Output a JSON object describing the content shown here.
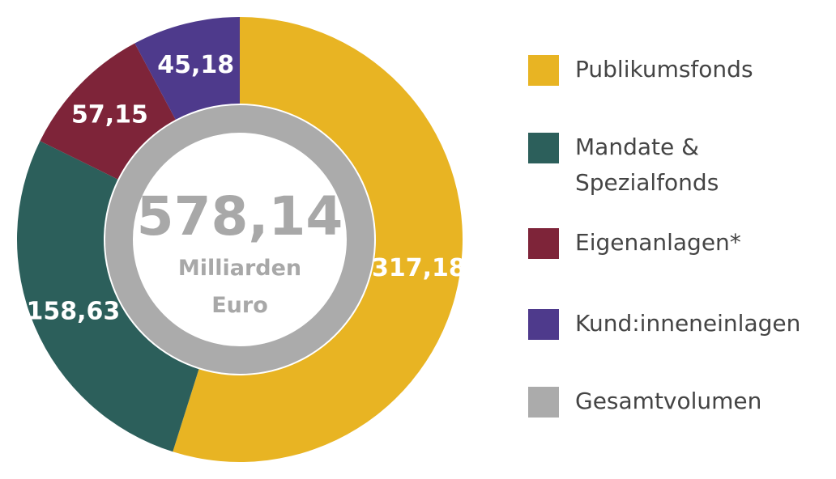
{
  "chart_data": {
    "type": "pie",
    "variant": "donut",
    "title": "",
    "categories": [
      "Publikumsfonds",
      "Mandate & Spezialfonds",
      "Eigenanlagen*",
      "Kund:inneneinlagen"
    ],
    "values": [
      317.18,
      158.63,
      57.15,
      45.18
    ],
    "value_labels": [
      "317,18",
      "158,63",
      "57,15",
      "45,18"
    ],
    "colors": [
      "#E8B423",
      "#2C5F5B",
      "#7E2439",
      "#4E3A8C"
    ],
    "total": {
      "label": "Gesamtvolumen",
      "value": 578.14,
      "value_label": "578,14",
      "unit_line1": "Milliarden",
      "unit_line2": "Euro",
      "color": "#ABABAB"
    },
    "legend_position": "right",
    "legend": [
      {
        "label": "Publikumsfonds",
        "color": "#E8B423"
      },
      {
        "label": "Mandate &\nSpezialfonds",
        "color": "#2C5F5B"
      },
      {
        "label": "Eigenanlagen*",
        "color": "#7E2439"
      },
      {
        "label": "Kund:inneneinlagen",
        "color": "#4E3A8C"
      },
      {
        "label": "Gesamtvolumen",
        "color": "#ABABAB"
      }
    ]
  }
}
